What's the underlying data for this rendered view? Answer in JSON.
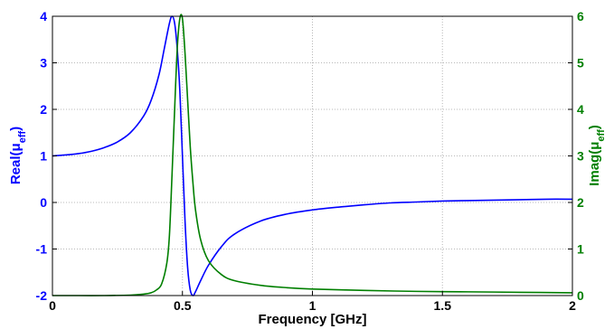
{
  "chart_data": {
    "type": "line",
    "xlabel": "Frequency [GHz]",
    "ylabel_left": "Real(μ",
    "ylabel_left_sub": "eff",
    "ylabel_left_close": ")",
    "ylabel_right": "Imag(μ",
    "ylabel_right_sub": "eff",
    "ylabel_right_close": ")",
    "xlim": [
      0,
      2
    ],
    "ylim_left": [
      -2,
      4
    ],
    "ylim_right": [
      0,
      6
    ],
    "grid": true,
    "x_ticks": [
      "0",
      "0.5",
      "1",
      "1.5",
      "2"
    ],
    "left_ticks": [
      "-2",
      "-1",
      "0",
      "1",
      "2",
      "3",
      "4"
    ],
    "right_ticks": [
      "0",
      "1",
      "2",
      "3",
      "4",
      "5",
      "6"
    ],
    "colors": {
      "real": "#0000ff",
      "imag": "#007f00",
      "grid": "#b8b8b8"
    },
    "series": [
      {
        "axis": "left",
        "x": [
          0,
          0.05,
          0.1,
          0.15,
          0.2,
          0.25,
          0.3,
          0.35,
          0.38,
          0.41,
          0.43,
          0.45,
          0.46,
          0.47,
          0.48,
          0.49,
          0.5,
          0.51,
          0.52,
          0.53,
          0.54,
          0.55,
          0.57,
          0.6,
          0.65,
          0.7,
          0.8,
          0.9,
          1.0,
          1.1,
          1.2,
          1.3,
          1.4,
          1.5,
          1.6,
          1.7,
          1.8,
          1.9,
          2.0
        ],
        "y": [
          1.0,
          1.02,
          1.05,
          1.1,
          1.18,
          1.3,
          1.5,
          1.85,
          2.2,
          2.75,
          3.3,
          3.85,
          4.0,
          3.85,
          3.3,
          2.4,
          1.0,
          -0.4,
          -1.4,
          -1.88,
          -2.0,
          -1.92,
          -1.68,
          -1.35,
          -0.95,
          -0.68,
          -0.4,
          -0.25,
          -0.16,
          -0.1,
          -0.05,
          -0.01,
          0.01,
          0.03,
          0.04,
          0.05,
          0.06,
          0.07,
          0.07
        ]
      },
      {
        "axis": "right",
        "x": [
          0,
          0.1,
          0.2,
          0.3,
          0.35,
          0.38,
          0.4,
          0.42,
          0.44,
          0.45,
          0.46,
          0.47,
          0.48,
          0.49,
          0.5,
          0.51,
          0.52,
          0.53,
          0.54,
          0.55,
          0.57,
          0.6,
          0.65,
          0.7,
          0.8,
          0.9,
          1.0,
          1.2,
          1.4,
          1.6,
          1.8,
          2.0
        ],
        "y": [
          0.0,
          0.0,
          0.0,
          0.01,
          0.03,
          0.06,
          0.12,
          0.25,
          0.7,
          1.3,
          2.6,
          4.0,
          5.3,
          5.95,
          5.95,
          5.2,
          4.2,
          3.2,
          2.45,
          1.85,
          1.2,
          0.75,
          0.45,
          0.32,
          0.22,
          0.17,
          0.14,
          0.11,
          0.09,
          0.08,
          0.07,
          0.06
        ]
      }
    ]
  }
}
